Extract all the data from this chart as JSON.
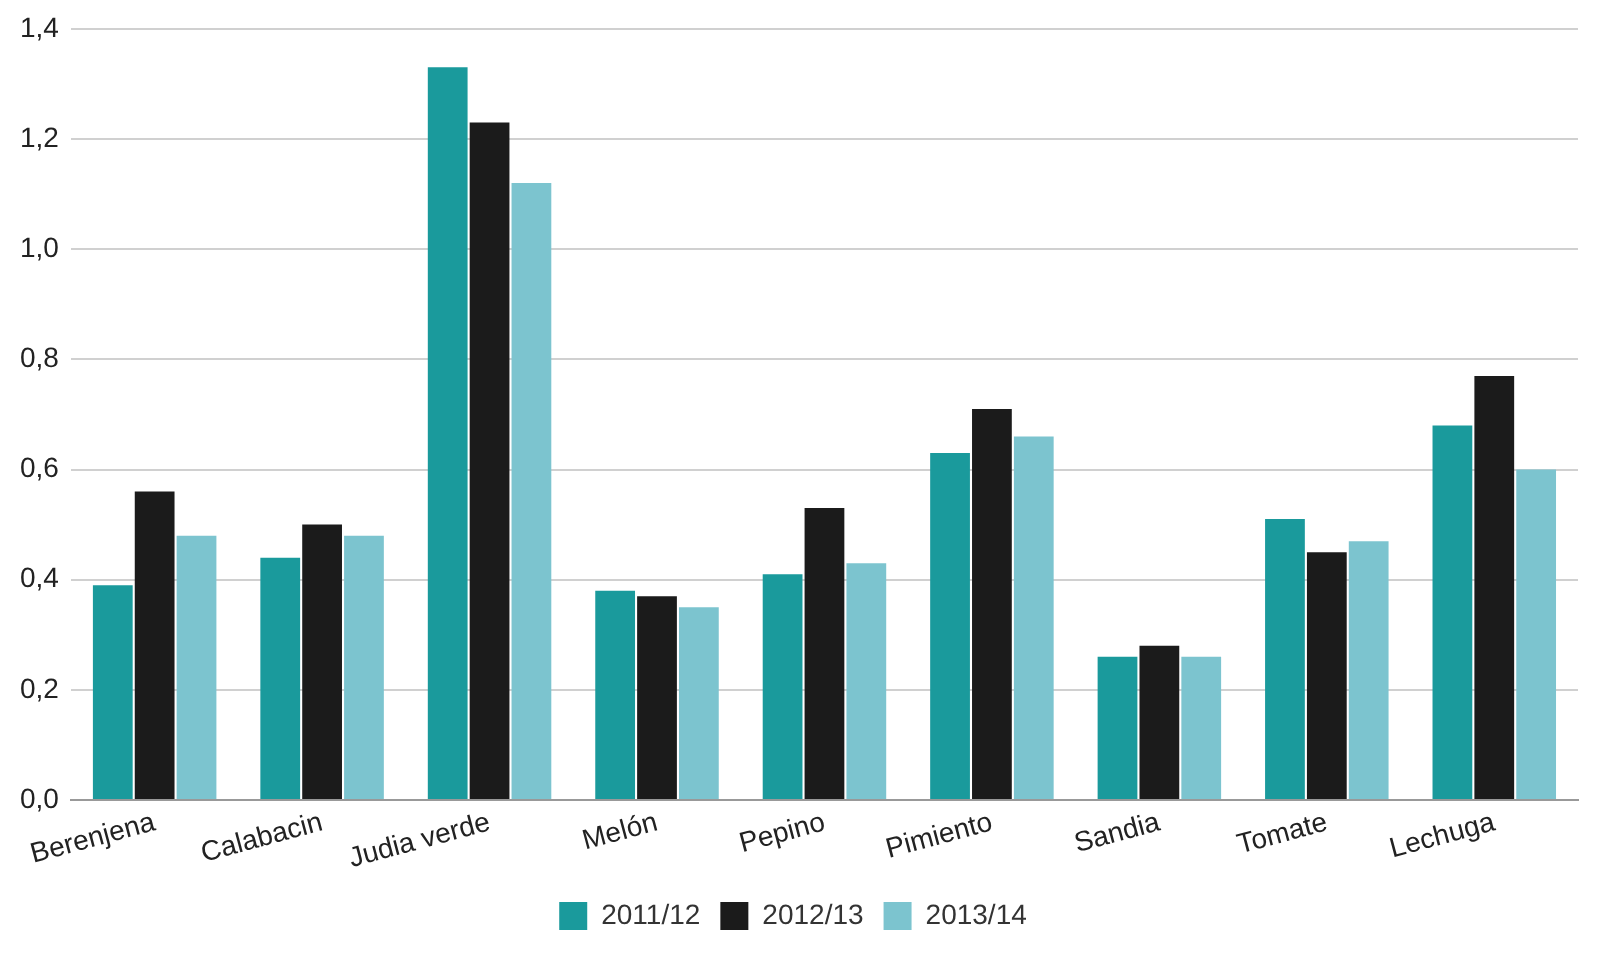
{
  "chart_data": {
    "type": "bar",
    "categories": [
      "Berenjena",
      "Calabacin",
      "Judia verde",
      "Melón",
      "Pepino",
      "Pimiento",
      "Sandia",
      "Tomate",
      "Lechuga"
    ],
    "series": [
      {
        "name": "2011/12",
        "color": "#1a9a9c",
        "values": [
          0.39,
          0.44,
          1.33,
          0.38,
          0.41,
          0.63,
          0.26,
          0.51,
          0.68
        ]
      },
      {
        "name": "2012/13",
        "color": "#1b1b1b",
        "values": [
          0.56,
          0.5,
          1.23,
          0.37,
          0.53,
          0.71,
          0.28,
          0.45,
          0.77
        ]
      },
      {
        "name": "2013/14",
        "color": "#7cc4cf",
        "values": [
          0.48,
          0.48,
          1.12,
          0.35,
          0.43,
          0.66,
          0.26,
          0.47,
          0.6
        ]
      }
    ],
    "ylim": [
      0,
      1.4
    ],
    "yticks": [
      {
        "value": 0,
        "label": "0,0"
      },
      {
        "value": 0.2,
        "label": "0,2"
      },
      {
        "value": 0.4,
        "label": "0,4"
      },
      {
        "value": 0.6,
        "label": "0,6"
      },
      {
        "value": 0.8,
        "label": "0,8"
      },
      {
        "value": 1.0,
        "label": "1,0"
      },
      {
        "value": 1.2,
        "label": "1,2"
      },
      {
        "value": 1.4,
        "label": "1,4"
      }
    ],
    "grid": "y",
    "legend": "bottom"
  }
}
